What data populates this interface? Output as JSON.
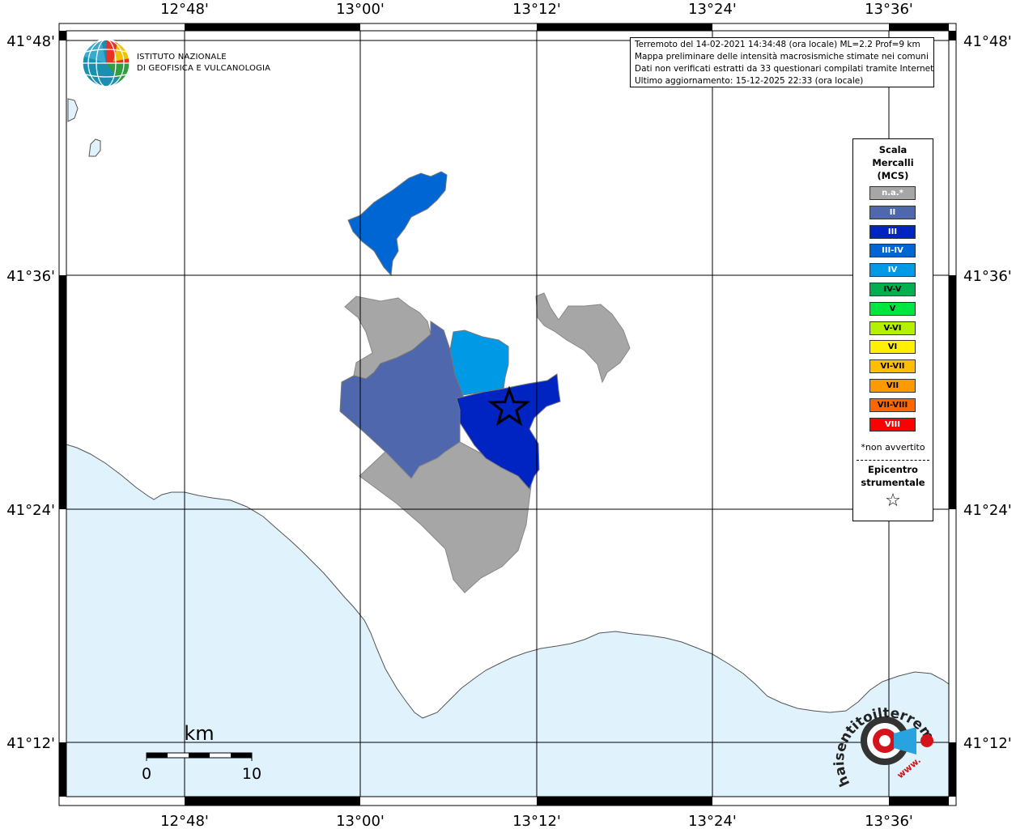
{
  "info": {
    "line1": "Terremoto del 14-02-2021 14:34:48 (ora locale) ML=2.2 Prof=9 km",
    "line2": "Mappa preliminare delle intensità macrosismiche stimate nei comuni",
    "line3": "Dati non verificati estratti da 33 questionari compilati tramite Internet.",
    "line4": "Ultimo aggiornamento: 15-12-2025 22:33 (ora locale)"
  },
  "logo": {
    "line1": "ISTITUTO NAZIONALE",
    "line2": "DI GEOFISICA E VULCANOLOGIA"
  },
  "axes": {
    "lon_labels": [
      "12°48'",
      "13°00'",
      "13°12'",
      "13°24'",
      "13°36'"
    ],
    "lat_labels": [
      "41°48'",
      "41°36'",
      "41°24'",
      "41°12'"
    ]
  },
  "legend": {
    "title_lines": [
      "Scala",
      "Mercalli",
      "(MCS)"
    ],
    "items": [
      {
        "label": "n.a.*",
        "color": "#a6a6a6"
      },
      {
        "label": "II",
        "color": "#4f67ad"
      },
      {
        "label": "III",
        "color": "#0024c2"
      },
      {
        "label": "III-IV",
        "color": "#0066d4"
      },
      {
        "label": "IV",
        "color": "#0099e6"
      },
      {
        "label": "IV-V",
        "color": "#00b04f"
      },
      {
        "label": "V",
        "color": "#00e640"
      },
      {
        "label": "V-VI",
        "color": "#b4f000"
      },
      {
        "label": "VI",
        "color": "#fff000"
      },
      {
        "label": "VI-VII",
        "color": "#ffbf00"
      },
      {
        "label": "VII",
        "color": "#ff9900"
      },
      {
        "label": "VII-VIII",
        "color": "#ff6600"
      },
      {
        "label": "VIII",
        "color": "#ff0000"
      }
    ],
    "note": "*non avvertito",
    "epicenter_lines": [
      "Epicentro",
      "strumentale"
    ],
    "epicenter_symbol": "☆"
  },
  "scale": {
    "unit": "km",
    "start": "0",
    "end": "10"
  },
  "watermark": {
    "text": "haisentitoilterremoto.it",
    "www": "www."
  },
  "colors": {
    "sea": "#e0f2fc",
    "coast": "#555555",
    "grid": "#000000"
  }
}
